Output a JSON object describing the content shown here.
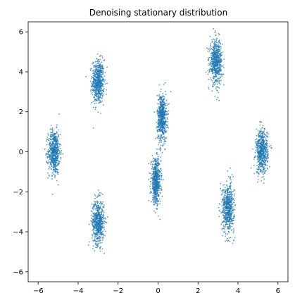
{
  "chart_data": {
    "type": "scatter",
    "title": "Denoising stationary distribution",
    "xlabel": "",
    "ylabel": "",
    "xlim": [
      -6.5,
      6.5
    ],
    "ylim": [
      -6.5,
      6.5
    ],
    "xticks": [
      -6,
      -4,
      -2,
      0,
      2,
      4,
      6
    ],
    "yticks": [
      -6,
      -4,
      -2,
      0,
      2,
      4,
      6
    ],
    "grid": false,
    "legend": "none",
    "color": "#1f77b4",
    "clusters": [
      {
        "x": -3.0,
        "y": 3.5,
        "sx": 0.15,
        "sy": 0.55
      },
      {
        "x": -5.2,
        "y": 0.0,
        "sx": 0.15,
        "sy": 0.55
      },
      {
        "x": -3.0,
        "y": -3.5,
        "sx": 0.15,
        "sy": 0.55
      },
      {
        "x": 0.2,
        "y": 1.7,
        "sx": 0.12,
        "sy": 0.6
      },
      {
        "x": -0.1,
        "y": -1.5,
        "sx": 0.12,
        "sy": 0.55
      },
      {
        "x": 2.9,
        "y": 4.5,
        "sx": 0.15,
        "sy": 0.55
      },
      {
        "x": 5.2,
        "y": 0.0,
        "sx": 0.15,
        "sy": 0.55
      },
      {
        "x": 3.5,
        "y": -2.8,
        "sx": 0.15,
        "sy": 0.6
      }
    ],
    "points_per_cluster": 600
  }
}
